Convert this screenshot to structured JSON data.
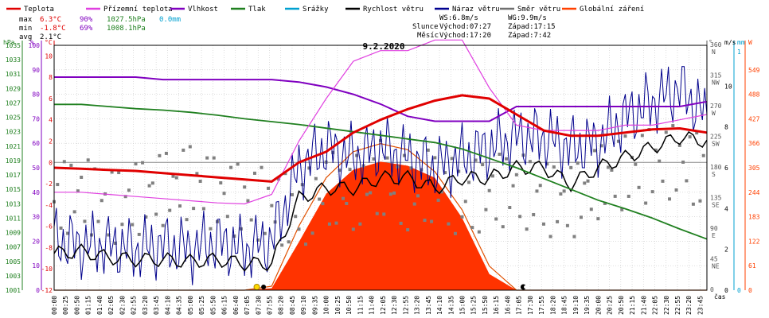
{
  "chart_data": {
    "type": "line",
    "title": "9.2.2020",
    "legend": [
      {
        "label": "Teplota",
        "color": "#e00000"
      },
      {
        "label": "Přízemní teplota",
        "color": "#e040e0"
      },
      {
        "label": "Vlhkost",
        "color": "#8000c0"
      },
      {
        "label": "Tlak",
        "color": "#208020"
      },
      {
        "label": "Srážky",
        "color": "#00a0d0"
      },
      {
        "label": "Rychlost větru",
        "color": "#000000"
      },
      {
        "label": "Náraz větru",
        "color": "#000090"
      },
      {
        "label": "Směr větru",
        "color": "#707070"
      },
      {
        "label": "Globální záření",
        "color": "#ff4000"
      }
    ],
    "stats": {
      "max": {
        "label": "max",
        "temp": "6.3°C",
        "hum": "90%",
        "press": "1027.5hPa",
        "rain": "0.0mm"
      },
      "min": {
        "label": "min",
        "temp": "-1.8°C",
        "hum": "69%",
        "press": "1008.1hPa"
      },
      "avg": {
        "label": "avg",
        "temp": "2.1°C"
      }
    },
    "info": {
      "ws": "WS:6.8m/s",
      "wg": "WG:9.9m/s",
      "sun": "Slunce",
      "sun_rise": "Východ:07:27",
      "sun_set": "Západ:17:15",
      "moon": "Měsíc",
      "moon_rise": "Východ:17:20",
      "moon_set": "Západ:7:42"
    },
    "axes": {
      "hpa": {
        "label": "hPa",
        "ticks": [
          "1001",
          "1003",
          "1005",
          "1007",
          "1009",
          "1011",
          "1013",
          "1015",
          "1017",
          "1019",
          "1021",
          "1023",
          "1025",
          "1027",
          "1029",
          "1031",
          "1033",
          "1035"
        ]
      },
      "pct": {
        "label": "%",
        "ticks": [
          "0",
          "10",
          "20",
          "30",
          "40",
          "50",
          "60",
          "70",
          "80",
          "90",
          "100"
        ]
      },
      "degc": {
        "label": "°C",
        "ticks": [
          "-12",
          "-10",
          "-8",
          "-6",
          "-4",
          "-2",
          "0",
          "2",
          "4",
          "6",
          "8",
          "10"
        ]
      },
      "dir": {
        "label": "°",
        "ticks": [
          [
            "0",
            ""
          ],
          [
            "45",
            "NE"
          ],
          [
            "90",
            "E"
          ],
          [
            "135",
            "SE"
          ],
          [
            "180",
            "S"
          ],
          [
            "225",
            "SW"
          ],
          [
            "270",
            "W"
          ],
          [
            "315",
            "NW"
          ],
          [
            "360",
            "N"
          ]
        ]
      },
      "ms": {
        "label": "m/s",
        "ticks": [
          "0",
          "2",
          "4",
          "6",
          "8",
          "10"
        ]
      },
      "mm": {
        "label": "mm",
        "ticks": [
          "0",
          "1"
        ]
      },
      "w": {
        "label": "W",
        "ticks": [
          "0",
          "61",
          "122",
          "183",
          "244",
          "305",
          "366",
          "427",
          "488",
          "549"
        ]
      },
      "time_label": "čas",
      "time_ticks": [
        "00:00",
        "00:25",
        "00:50",
        "01:15",
        "01:40",
        "02:05",
        "02:30",
        "02:55",
        "03:20",
        "03:45",
        "04:10",
        "04:35",
        "05:00",
        "05:25",
        "05:50",
        "06:15",
        "06:40",
        "07:05",
        "07:30",
        "07:55",
        "08:20",
        "08:45",
        "09:10",
        "09:35",
        "10:00",
        "10:25",
        "10:50",
        "11:15",
        "11:40",
        "12:05",
        "12:30",
        "12:55",
        "13:20",
        "13:45",
        "14:10",
        "14:35",
        "15:00",
        "15:25",
        "15:50",
        "16:15",
        "16:40",
        "17:05",
        "17:30",
        "17:55",
        "18:20",
        "18:45",
        "19:10",
        "19:35",
        "20:00",
        "20:25",
        "20:50",
        "21:15",
        "21:40",
        "22:05",
        "22:30",
        "22:55",
        "23:20",
        "23:45"
      ]
    },
    "x_hours": [
      0,
      1,
      2,
      3,
      4,
      5,
      6,
      7,
      8,
      9,
      10,
      11,
      12,
      13,
      14,
      15,
      16,
      17,
      18,
      19,
      20,
      21,
      22,
      23,
      24
    ],
    "temperature": [
      -0.5,
      -0.6,
      -0.7,
      -0.8,
      -1.0,
      -1.2,
      -1.4,
      -1.6,
      -1.8,
      0.0,
      1.0,
      2.8,
      4.0,
      5.0,
      5.8,
      6.3,
      6.0,
      4.5,
      3.0,
      2.5,
      2.5,
      2.8,
      3.1,
      3.2,
      2.8
    ],
    "ground_temp": [
      -2.8,
      -2.8,
      -3.0,
      -3.2,
      -3.4,
      -3.6,
      -3.8,
      -3.9,
      -3.0,
      2.0,
      6.0,
      9.5,
      10.5,
      10.5,
      11.5,
      11.5,
      7.0,
      3.5,
      3.0,
      3.0,
      3.0,
      3.5,
      3.5,
      4.0,
      4.5
    ],
    "humidity": [
      87,
      87,
      87,
      87,
      86,
      86,
      86,
      86,
      86,
      85,
      83,
      80,
      76,
      71,
      69,
      69,
      69,
      75,
      75,
      75,
      75,
      75,
      75,
      75,
      77
    ],
    "pressure": [
      1026.8,
      1026.8,
      1026.5,
      1026.2,
      1026.0,
      1025.7,
      1025.3,
      1024.8,
      1024.4,
      1024.0,
      1023.5,
      1023.0,
      1022.5,
      1022.0,
      1021.5,
      1020.6,
      1019.3,
      1018.0,
      1016.5,
      1015.0,
      1013.5,
      1012.3,
      1011.0,
      1009.5,
      1008.1
    ],
    "wind_speed": [
      1.8,
      1.9,
      1.6,
      1.5,
      1.5,
      1.4,
      1.5,
      1.3,
      1.3,
      4.5,
      5.0,
      5.0,
      5.5,
      5.5,
      5.0,
      5.5,
      5.5,
      6.0,
      6.0,
      5.2,
      6.0,
      6.5,
      7.0,
      7.5,
      7.3
    ],
    "wind_gust": [
      2.5,
      2.2,
      2.2,
      2.0,
      2.2,
      2.0,
      2.4,
      2.0,
      2.4,
      6.0,
      7.0,
      6.5,
      7.0,
      6.5,
      6.0,
      6.5,
      7.0,
      7.5,
      7.5,
      7.0,
      7.2,
      8.5,
      9.2,
      9.9,
      8.5
    ],
    "wind_dir": [
      130,
      145,
      120,
      135,
      150,
      160,
      140,
      130,
      125,
      110,
      150,
      140,
      165,
      140,
      155,
      130,
      145,
      150,
      135,
      130,
      160,
      175,
      185,
      190,
      170
    ],
    "radiation": [
      0,
      0,
      0,
      0,
      0,
      0,
      0,
      0,
      5,
      120,
      240,
      300,
      320,
      310,
      280,
      180,
      40,
      0,
      0,
      0,
      0,
      0,
      0,
      0,
      0
    ],
    "clear_sky_radiation": [
      0,
      0,
      0,
      0,
      0,
      0,
      0,
      0,
      10,
      160,
      280,
      345,
      365,
      350,
      295,
      200,
      60,
      0,
      0,
      0,
      0,
      0,
      0,
      0,
      0
    ]
  }
}
